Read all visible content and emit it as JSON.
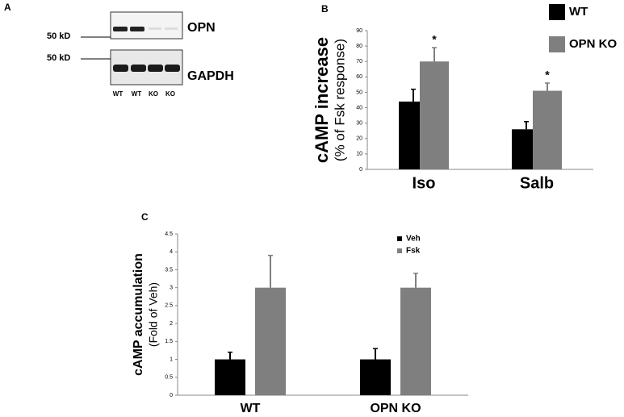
{
  "blot": {
    "panel": "A",
    "markers": [
      "50 kD",
      "50 kD"
    ],
    "bands": [
      "OPN",
      "GAPDH"
    ],
    "lanes": [
      "WT",
      "WT",
      "KO",
      "KO"
    ]
  },
  "chart_data": [
    {
      "type": "bar",
      "panel": "B",
      "ylabel": [
        "cAMP increase",
        "(% of Fsk response)"
      ],
      "categories": [
        "Iso",
        "Salb"
      ],
      "series": [
        {
          "name": "WT",
          "color": "#000000",
          "values": [
            44,
            26
          ],
          "errors": [
            8,
            5
          ]
        },
        {
          "name": "OPN KO",
          "color": "#7f7f7f",
          "values": [
            70,
            51
          ],
          "errors": [
            9,
            5
          ]
        }
      ],
      "annotations": [
        {
          "text": "*",
          "category": "Iso",
          "series": "OPN KO"
        },
        {
          "text": "*",
          "category": "Salb",
          "series": "OPN KO"
        }
      ],
      "ylim": [
        0,
        90
      ],
      "yticks": [
        0,
        10,
        20,
        30,
        40,
        50,
        60,
        70,
        80,
        90
      ],
      "legend": "upper right"
    },
    {
      "type": "bar",
      "panel": "C",
      "ylabel": [
        "cAMP accumulation",
        "(Fold of Veh)"
      ],
      "categories": [
        "WT",
        "OPN KO"
      ],
      "series": [
        {
          "name": "Veh",
          "color": "#000000",
          "values": [
            1,
            1
          ],
          "errors": [
            0.2,
            0.3
          ]
        },
        {
          "name": "Fsk",
          "color": "#7f7f7f",
          "values": [
            3,
            3
          ],
          "errors": [
            0.9,
            0.4
          ]
        }
      ],
      "ylim": [
        0,
        4.5
      ],
      "yticks": [
        0,
        0.5,
        1,
        1.5,
        2,
        2.5,
        3,
        3.5,
        4,
        4.5
      ],
      "legend": "upper right"
    }
  ]
}
